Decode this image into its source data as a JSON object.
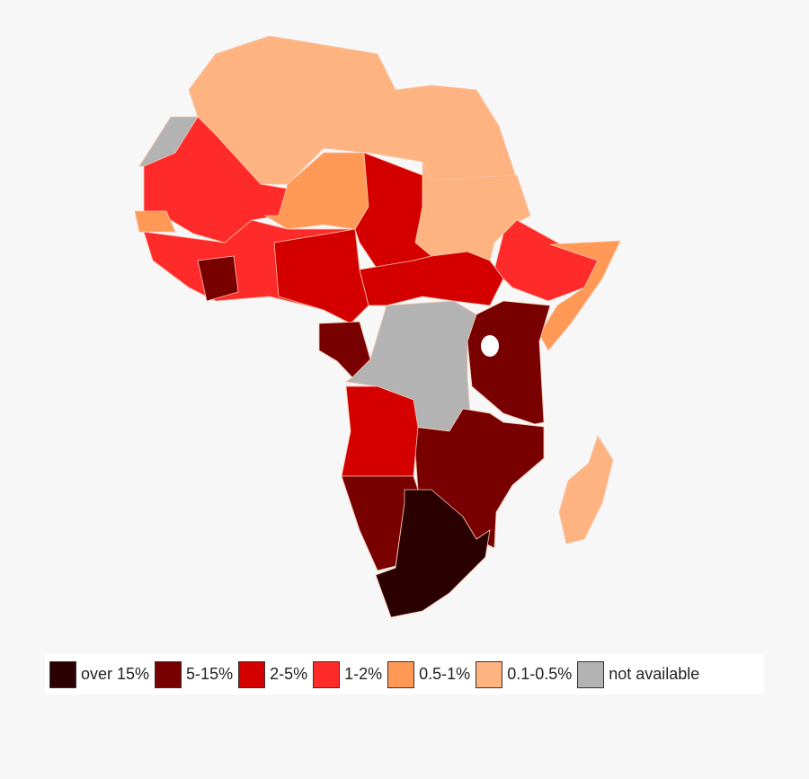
{
  "legend": [
    {
      "label": "over 15%",
      "color": "#2b0000"
    },
    {
      "label": "5-15%",
      "color": "#780000"
    },
    {
      "label": "2-5%",
      "color": "#d40000"
    },
    {
      "label": "1-2%",
      "color": "#ff2a2a"
    },
    {
      "label": "0.5-1%",
      "color": "#ff9955"
    },
    {
      "label": "0.1-0.5%",
      "color": "#ffb380"
    },
    {
      "label": "not available",
      "color": "#b3b3b3"
    }
  ]
}
